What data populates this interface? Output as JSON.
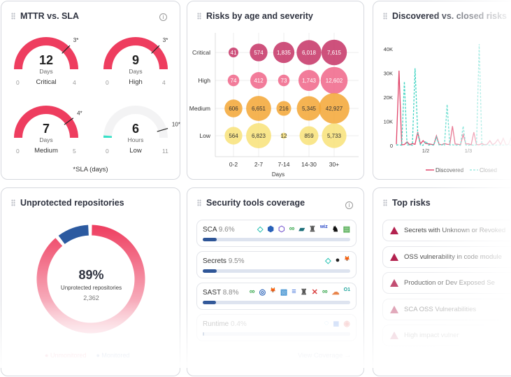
{
  "mttr": {
    "title": "MTTR vs. SLA",
    "footnote": "*SLA (days)",
    "gauges": [
      {
        "label": "Critical",
        "value": "12",
        "unit": "Days",
        "min": "0",
        "max": "4",
        "sla": "3*",
        "fill": 1,
        "sla_frac": 0.75,
        "color": "#ee3d5f"
      },
      {
        "label": "High",
        "value": "9",
        "unit": "Days",
        "min": "0",
        "max": "4",
        "sla": "3*",
        "fill": 1,
        "sla_frac": 0.75,
        "color": "#ee3d5f"
      },
      {
        "label": "Medium",
        "value": "7",
        "unit": "Days",
        "min": "0",
        "max": "5",
        "sla": "4*",
        "fill": 1,
        "sla_frac": 0.8,
        "color": "#ee3d5f"
      },
      {
        "label": "Low",
        "value": "6",
        "unit": "Hours",
        "min": "0",
        "max": "11",
        "sla": "10*",
        "fill": 0.023,
        "sla_frac": 0.91,
        "color": "#35e0c6"
      }
    ]
  },
  "bubbles": {
    "title": "Risks by age and severity",
    "chart_data": {
      "type": "bubble",
      "xlabel": "Days",
      "categories": [
        "0-2",
        "2-7",
        "7-14",
        "14-30",
        "30+"
      ],
      "rows": [
        {
          "name": "Critical",
          "values": [
            41,
            574,
            1835,
            6018,
            7615
          ],
          "labels": [
            "41",
            "574",
            "1,835",
            "6,018",
            "7,615"
          ],
          "color": "#c7396a"
        },
        {
          "name": "High",
          "values": [
            74,
            412,
            73,
            1743,
            12602
          ],
          "labels": [
            "74",
            "412",
            "73",
            "1,743",
            "12,602"
          ],
          "color": "#f06a8c"
        },
        {
          "name": "Medium",
          "values": [
            606,
            6651,
            216,
            5345,
            42927
          ],
          "labels": [
            "606",
            "6,651",
            "216",
            "5,345",
            "42,927"
          ],
          "color": "#f4a93a"
        },
        {
          "name": "Low",
          "values": [
            564,
            6823,
            12,
            859,
            5733
          ],
          "labels": [
            "564",
            "6,823",
            "12",
            "859",
            "5,733"
          ],
          "color": "#f8e27c"
        }
      ]
    }
  },
  "trend": {
    "title": "Discovered vs. closed risks",
    "chart_data": {
      "type": "line",
      "y_ticks": [
        "0",
        "10K",
        "20K",
        "30K",
        "40K"
      ],
      "ylim": [
        0,
        40000
      ],
      "x_ticks": [
        "1/2",
        "1/3"
      ],
      "legend": "bottom",
      "series": [
        {
          "name": "Discovered",
          "color": "#e0456a",
          "values": [
            500,
            31000,
            300,
            400,
            1500,
            300,
            800,
            500,
            5500,
            600,
            2000,
            800,
            700,
            500,
            300,
            4000,
            500,
            300,
            800,
            500,
            400,
            8000,
            600,
            500,
            300,
            4500,
            600,
            700,
            300,
            5500,
            400,
            300,
            800,
            300,
            500,
            2000,
            300,
            1000,
            2500,
            400,
            3000,
            300,
            500,
            3500,
            400,
            300
          ]
        },
        {
          "name": "Closed",
          "color": "#3fd4c2",
          "values": [
            200,
            300,
            100,
            26500,
            200,
            300,
            100,
            32000,
            5000,
            200,
            100,
            1800,
            200,
            300,
            100,
            3500,
            200,
            300,
            100,
            17000,
            200,
            300,
            100,
            200,
            100,
            8000,
            200,
            100,
            300,
            100,
            300,
            42000,
            100,
            200,
            300,
            100,
            200,
            100,
            300,
            100,
            200,
            100,
            300,
            100,
            200,
            100
          ]
        }
      ]
    }
  },
  "repos": {
    "title": "Unprotected repositories",
    "percent": "89%",
    "label": "Unprotected repositories",
    "count": "2,362",
    "unprotected_fraction": 0.89,
    "legend": [
      "Unmonitored",
      "Monitored"
    ],
    "colors": {
      "unmonitored": "#ee3d5f",
      "monitored": "#2c5aa0"
    }
  },
  "coverage": {
    "title": "Security tools coverage",
    "rows": [
      {
        "name": "SCA",
        "pct": "9.6%",
        "value": 0.096,
        "icons": [
          "◇",
          "⬢",
          "⬡",
          "∞",
          "▰",
          "♜",
          "wiz",
          "♞",
          "▤"
        ],
        "colors": [
          "#2cc4b5",
          "#2861b8",
          "#7a5ccf",
          "#3aa84f",
          "#1d6f7a",
          "#555",
          "#2a49c8",
          "#111",
          "#4caa4c"
        ]
      },
      {
        "name": "Secrets",
        "pct": "9.5%",
        "value": 0.095,
        "icons": [
          "◇",
          "●",
          "🦊"
        ],
        "colors": [
          "#2cc4b5",
          "#222",
          "#e86b2b"
        ]
      },
      {
        "name": "SAST",
        "pct": "8.8%",
        "value": 0.088,
        "icons": [
          "∞",
          "◎",
          "🦊",
          "▧",
          "≡",
          "♜",
          "✕",
          "∞",
          "☁",
          "O1"
        ],
        "colors": [
          "#3aa84f",
          "#2861b8",
          "#e86b2b",
          "#3d8fd0",
          "#3d6fd8",
          "#555",
          "#d94040",
          "#3aa84f",
          "#e8844a",
          "#1aa39a"
        ]
      },
      {
        "name": "Runtime",
        "pct": "0.4%",
        "value": 0.004,
        "icons": [
          "◌",
          "◼",
          "◉"
        ],
        "colors": [
          "#5ab6e8",
          "#5a8be8",
          "#e86b6b"
        ]
      }
    ],
    "view_link": "View Coverage →"
  },
  "top_risks": {
    "title": "Top risks",
    "items": [
      "Secrets with Unknown or Revoked",
      "OSS vulnerability in code module",
      "Production or Dev Exposed Se",
      "SCA OSS Vulnerabilities",
      "High impact vulner"
    ]
  }
}
